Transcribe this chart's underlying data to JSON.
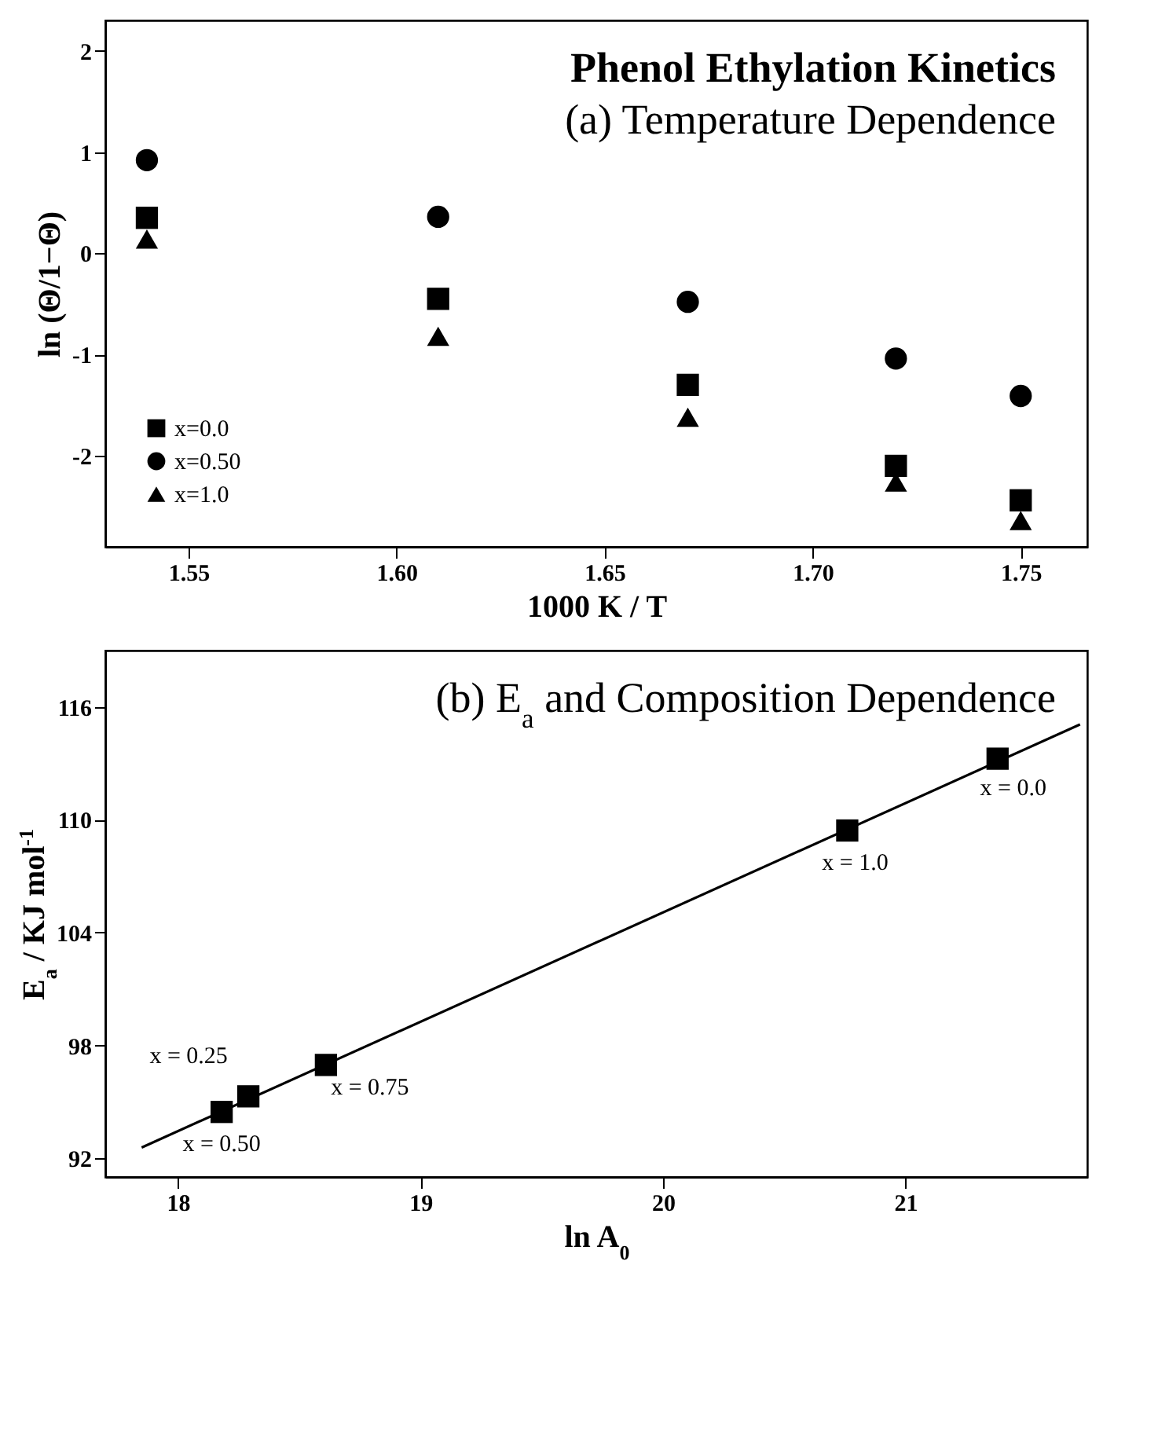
{
  "chart_data": [
    {
      "type": "scatter",
      "title": "Phenol Ethylation Kinetics",
      "subtitle": "(a) Temperature Dependence",
      "xlabel": "1000 K / T",
      "ylabel": "ln (Θ/1−Θ)",
      "x": [
        1.54,
        1.61,
        1.67,
        1.72,
        1.75
      ],
      "series": [
        {
          "name": "x=0.0",
          "color": "#000000",
          "marker": "square",
          "values": [
            0.35,
            -0.45,
            -1.3,
            -2.1,
            -2.44
          ]
        },
        {
          "name": "x=0.50",
          "color": "#000000",
          "marker": "circle",
          "values": [
            0.92,
            0.36,
            -0.48,
            -1.04,
            -1.41
          ]
        },
        {
          "name": "x=1.0",
          "color": "#000000",
          "marker": "triangle",
          "values": [
            0.14,
            -0.82,
            -1.62,
            -2.26,
            -2.64
          ]
        }
      ],
      "xlim": [
        1.53,
        1.766
      ],
      "xticks": [
        1.55,
        {
          "value": 1.6,
          "label": "1.60"
        },
        1.65,
        {
          "value": 1.7,
          "label": "1.70"
        },
        1.75
      ],
      "ylim": [
        -2.9,
        2.3
      ],
      "yticks": [
        -2,
        -1,
        0,
        1,
        2
      ],
      "grid": false,
      "legend": "bottom left"
    },
    {
      "type": "scatter",
      "title": "(b) E$_{a}$ and Composition Dependence",
      "xlabel": "ln A$_{0}$",
      "ylabel": "E$_{a}$ / KJ mol$^{-1}$",
      "x": [
        18.18,
        18.29,
        18.61,
        20.76,
        21.38
      ],
      "series": [
        {
          "color": "#000000",
          "marker": "square",
          "values": [
            94.46,
            95.29,
            96.96,
            109.43,
            113.25
          ]
        },
        {
          "type": "line",
          "color": "#000000",
          "line_style": "solid",
          "x": [
            17.85,
            21.72
          ],
          "values": [
            92.57,
            115.07
          ]
        }
      ],
      "annotations": [
        {
          "text": "x = 0.50",
          "x": 18.18,
          "y": 94.46
        },
        {
          "text": "x = 0.25",
          "x": 18.29,
          "y": 95.29
        },
        {
          "text": "x = 0.75",
          "x": 18.61,
          "y": 96.96
        },
        {
          "text": "x = 1.0",
          "x": 20.76,
          "y": 109.43
        },
        {
          "text": "x = 0.0",
          "x": 21.38,
          "y": 113.25
        }
      ],
      "xlim": [
        17.7,
        21.75
      ],
      "xticks": [
        {
          "value": 18,
          "label": "18"
        },
        {
          "value": 19,
          "label": "19"
        },
        {
          "value": 20,
          "label": "20"
        },
        {
          "value": 21,
          "label": "21"
        }
      ],
      "ylim": [
        91,
        119
      ],
      "yticks": [
        92,
        98,
        104,
        110,
        116
      ],
      "grid": false,
      "legend": false
    }
  ]
}
